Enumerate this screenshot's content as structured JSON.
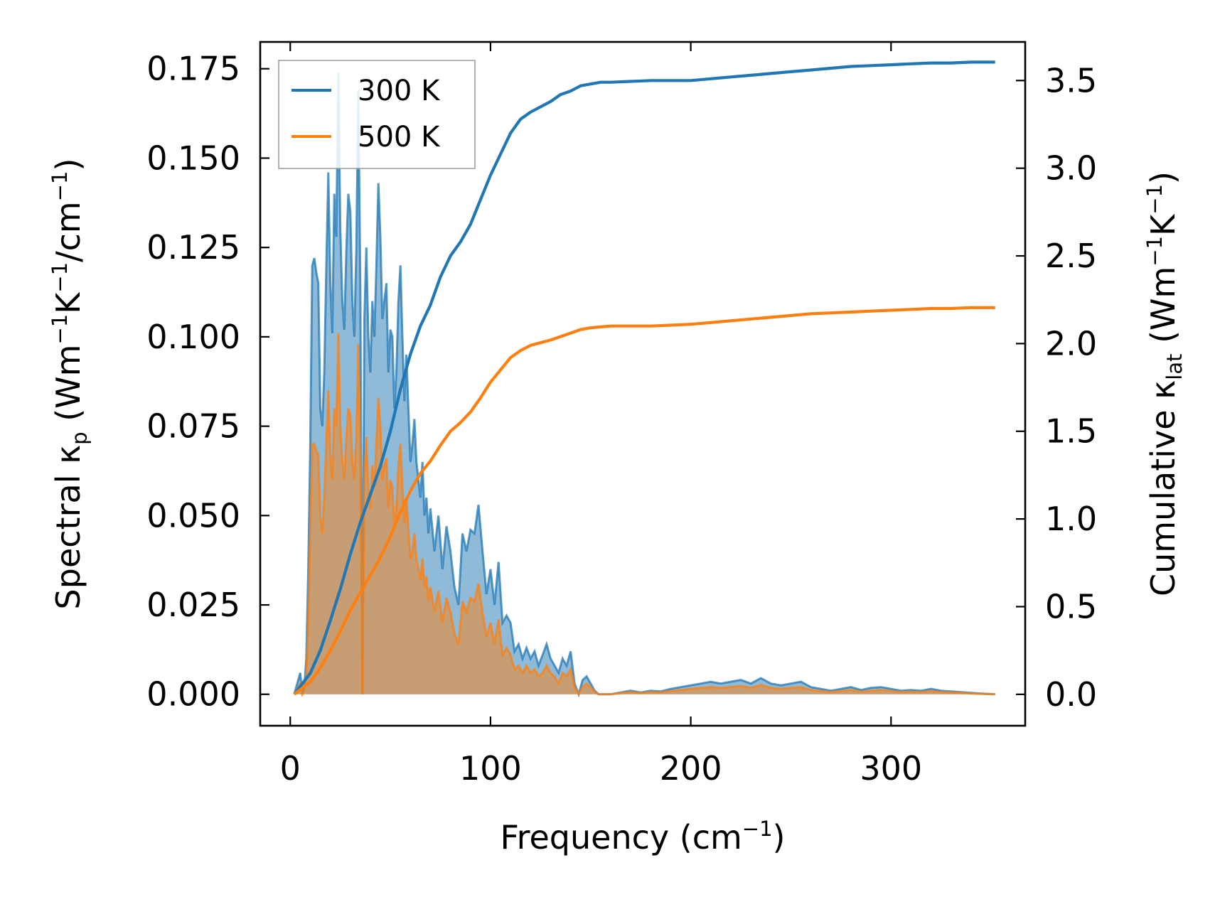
{
  "chart_data": {
    "type": "area",
    "xlabel": "Frequency (cm⁻¹)",
    "ylabel_left": "Spectral κp (Wm⁻¹K⁻¹/cm⁻¹)",
    "ylabel_right": "Cumulative κlat (Wm⁻¹K⁻¹)",
    "xlim": [
      -15,
      367
    ],
    "ylim_left": [
      -0.0088,
      0.1825
    ],
    "ylim_right": [
      -0.179,
      3.72
    ],
    "x_ticks": [
      0,
      100,
      200,
      300
    ],
    "x_tick_labels": [
      "0",
      "100",
      "200",
      "300"
    ],
    "y_left_ticks": [
      0,
      0.025,
      0.05,
      0.075,
      0.1,
      0.125,
      0.15,
      0.175
    ],
    "y_left_tick_labels": [
      "0.000",
      "0.025",
      "0.050",
      "0.075",
      "0.100",
      "0.125",
      "0.150",
      "0.175"
    ],
    "y_right_ticks": [
      0,
      0.5,
      1.0,
      1.5,
      2.0,
      2.5,
      3.0,
      3.5
    ],
    "y_right_tick_labels": [
      "0.0",
      "0.5",
      "1.0",
      "1.5",
      "2.0",
      "2.5",
      "3.0",
      "3.5"
    ],
    "legend_position": "top-left",
    "grid": false,
    "series": [
      {
        "name": "300 K",
        "color": "#1f77b4",
        "spectral": {
          "x": [
            2,
            4,
            5,
            6,
            7,
            8,
            9,
            10,
            11,
            12,
            13,
            14,
            15,
            16,
            17,
            18,
            19,
            20,
            21,
            22,
            23,
            24,
            25,
            26,
            27,
            28,
            29,
            30,
            31,
            32,
            33,
            34,
            35,
            36,
            37,
            38,
            39,
            40,
            41,
            42,
            43,
            44,
            45,
            46,
            47,
            48,
            49,
            50,
            51,
            52,
            53,
            54,
            55,
            56,
            57,
            58,
            59,
            60,
            61,
            62,
            63,
            64,
            65,
            66,
            67,
            68,
            69,
            70,
            72,
            74,
            76,
            78,
            80,
            82,
            84,
            86,
            88,
            90,
            92,
            94,
            96,
            98,
            100,
            102,
            104,
            106,
            108,
            110,
            112,
            114,
            116,
            118,
            120,
            122,
            124,
            126,
            128,
            130,
            132,
            134,
            136,
            138,
            140,
            142,
            144,
            146,
            148,
            150,
            152,
            154,
            156,
            158,
            160,
            165,
            170,
            175,
            180,
            185,
            190,
            195,
            200,
            205,
            210,
            215,
            220,
            225,
            230,
            235,
            240,
            245,
            250,
            255,
            260,
            265,
            270,
            275,
            280,
            285,
            290,
            295,
            300,
            305,
            310,
            315,
            320,
            325,
            330,
            335,
            340,
            345,
            352
          ],
          "y": [
            0.0,
            0.004,
            0.006,
            0.0,
            0.002,
            0.01,
            0.035,
            0.07,
            0.12,
            0.122,
            0.118,
            0.115,
            0.08,
            0.075,
            0.09,
            0.12,
            0.146,
            0.115,
            0.101,
            0.14,
            0.128,
            0.174,
            0.13,
            0.11,
            0.102,
            0.124,
            0.14,
            0.135,
            0.11,
            0.1,
            0.125,
            0.169,
            0.115,
            0.0,
            0.105,
            0.125,
            0.1,
            0.09,
            0.11,
            0.1,
            0.12,
            0.143,
            0.128,
            0.105,
            0.11,
            0.115,
            0.09,
            0.102,
            0.1,
            0.08,
            0.09,
            0.11,
            0.12,
            0.1,
            0.082,
            0.095,
            0.08,
            0.065,
            0.07,
            0.077,
            0.065,
            0.06,
            0.055,
            0.065,
            0.05,
            0.055,
            0.045,
            0.052,
            0.04,
            0.05,
            0.035,
            0.047,
            0.04,
            0.03,
            0.025,
            0.045,
            0.04,
            0.046,
            0.045,
            0.053,
            0.04,
            0.028,
            0.035,
            0.025,
            0.037,
            0.02,
            0.022,
            0.02,
            0.012,
            0.014,
            0.01,
            0.013,
            0.01,
            0.012,
            0.008,
            0.011,
            0.014,
            0.01,
            0.008,
            0.006,
            0.01,
            0.008,
            0.012,
            0.003,
            0.0,
            0.004,
            0.005,
            0.003,
            0.001,
            0.0,
            0.0,
            0.0,
            0.0,
            0.0005,
            0.001,
            0.0005,
            0.001,
            0.0008,
            0.0015,
            0.002,
            0.0025,
            0.003,
            0.0035,
            0.003,
            0.0035,
            0.004,
            0.003,
            0.0045,
            0.003,
            0.0025,
            0.003,
            0.0035,
            0.002,
            0.0015,
            0.001,
            0.0015,
            0.002,
            0.0012,
            0.0018,
            0.002,
            0.0015,
            0.001,
            0.0012,
            0.001,
            0.0015,
            0.001,
            0.0008,
            0.0006,
            0.0004,
            0.0002,
            0.0
          ]
        },
        "cumulative": {
          "x": [
            2,
            10,
            15,
            20,
            25,
            30,
            35,
            40,
            45,
            50,
            55,
            60,
            65,
            70,
            75,
            80,
            85,
            90,
            95,
            100,
            105,
            110,
            115,
            120,
            130,
            135,
            140,
            145,
            150,
            155,
            160,
            170,
            180,
            190,
            200,
            210,
            220,
            230,
            240,
            250,
            260,
            270,
            280,
            290,
            300,
            310,
            320,
            330,
            340,
            350,
            352
          ],
          "y": [
            0.0,
            0.12,
            0.25,
            0.42,
            0.6,
            0.8,
            0.98,
            1.14,
            1.3,
            1.5,
            1.74,
            1.94,
            2.1,
            2.22,
            2.38,
            2.5,
            2.58,
            2.68,
            2.82,
            2.96,
            3.08,
            3.2,
            3.28,
            3.32,
            3.38,
            3.42,
            3.44,
            3.47,
            3.48,
            3.49,
            3.49,
            3.495,
            3.5,
            3.5,
            3.5,
            3.51,
            3.52,
            3.53,
            3.54,
            3.55,
            3.56,
            3.57,
            3.58,
            3.585,
            3.59,
            3.595,
            3.6,
            3.6,
            3.605,
            3.605,
            3.605
          ]
        }
      },
      {
        "name": "500 K",
        "color": "#ff7f0e",
        "spectral": {
          "x": [
            2,
            4,
            5,
            6,
            7,
            8,
            9,
            10,
            11,
            12,
            13,
            14,
            15,
            16,
            17,
            18,
            19,
            20,
            21,
            22,
            23,
            24,
            25,
            26,
            27,
            28,
            29,
            30,
            31,
            32,
            33,
            34,
            35,
            36,
            37,
            38,
            39,
            40,
            41,
            42,
            43,
            44,
            45,
            46,
            47,
            48,
            49,
            50,
            51,
            52,
            53,
            54,
            55,
            56,
            57,
            58,
            59,
            60,
            61,
            62,
            63,
            64,
            65,
            66,
            67,
            68,
            69,
            70,
            72,
            74,
            76,
            78,
            80,
            82,
            84,
            86,
            88,
            90,
            92,
            94,
            96,
            98,
            100,
            102,
            104,
            106,
            108,
            110,
            112,
            114,
            116,
            118,
            120,
            122,
            124,
            126,
            128,
            130,
            132,
            134,
            136,
            138,
            140,
            142,
            144,
            146,
            148,
            150,
            152,
            154,
            156,
            158,
            160,
            165,
            170,
            175,
            180,
            185,
            190,
            195,
            200,
            205,
            210,
            215,
            220,
            225,
            230,
            235,
            240,
            245,
            250,
            255,
            260,
            265,
            270,
            275,
            280,
            285,
            290,
            295,
            300,
            305,
            310,
            315,
            320,
            325,
            330,
            335,
            340,
            345,
            352
          ],
          "y": [
            0.0,
            0.002,
            0.003,
            0.0,
            0.001,
            0.005,
            0.02,
            0.045,
            0.07,
            0.07,
            0.068,
            0.067,
            0.05,
            0.045,
            0.055,
            0.07,
            0.085,
            0.067,
            0.06,
            0.08,
            0.075,
            0.101,
            0.075,
            0.065,
            0.06,
            0.072,
            0.08,
            0.078,
            0.065,
            0.06,
            0.072,
            0.098,
            0.068,
            0.0,
            0.06,
            0.072,
            0.058,
            0.052,
            0.064,
            0.058,
            0.07,
            0.083,
            0.075,
            0.06,
            0.064,
            0.066,
            0.052,
            0.06,
            0.058,
            0.046,
            0.052,
            0.064,
            0.07,
            0.058,
            0.048,
            0.055,
            0.046,
            0.038,
            0.04,
            0.045,
            0.038,
            0.035,
            0.032,
            0.038,
            0.03,
            0.033,
            0.026,
            0.03,
            0.023,
            0.029,
            0.02,
            0.027,
            0.023,
            0.017,
            0.014,
            0.026,
            0.023,
            0.027,
            0.026,
            0.031,
            0.023,
            0.016,
            0.02,
            0.014,
            0.021,
            0.011,
            0.013,
            0.011,
            0.007,
            0.008,
            0.006,
            0.008,
            0.006,
            0.007,
            0.005,
            0.006,
            0.008,
            0.006,
            0.005,
            0.003,
            0.006,
            0.005,
            0.007,
            0.002,
            0.0,
            0.002,
            0.003,
            0.002,
            0.0006,
            0.0,
            0.0,
            0.0,
            0.0,
            0.0003,
            0.0006,
            0.0003,
            0.0006,
            0.0005,
            0.0009,
            0.0012,
            0.0015,
            0.0018,
            0.002,
            0.0018,
            0.002,
            0.0023,
            0.0018,
            0.0026,
            0.0018,
            0.0015,
            0.0018,
            0.002,
            0.0012,
            0.0009,
            0.0006,
            0.0009,
            0.0012,
            0.0007,
            0.001,
            0.0012,
            0.0009,
            0.0006,
            0.0007,
            0.0006,
            0.0009,
            0.0006,
            0.0005,
            0.0004,
            0.0002,
            0.0001,
            0.0
          ]
        },
        "cumulative": {
          "x": [
            2,
            10,
            15,
            20,
            25,
            30,
            35,
            40,
            45,
            50,
            55,
            60,
            65,
            70,
            75,
            80,
            85,
            90,
            95,
            100,
            105,
            110,
            115,
            120,
            130,
            135,
            140,
            145,
            150,
            155,
            160,
            170,
            180,
            190,
            200,
            210,
            220,
            230,
            240,
            250,
            260,
            270,
            280,
            290,
            300,
            310,
            320,
            330,
            340,
            350,
            352
          ],
          "y": [
            0.0,
            0.07,
            0.15,
            0.25,
            0.36,
            0.48,
            0.58,
            0.68,
            0.78,
            0.9,
            1.04,
            1.16,
            1.26,
            1.33,
            1.42,
            1.5,
            1.55,
            1.61,
            1.69,
            1.78,
            1.85,
            1.92,
            1.96,
            1.99,
            2.02,
            2.04,
            2.06,
            2.08,
            2.09,
            2.095,
            2.1,
            2.1,
            2.1,
            2.105,
            2.11,
            2.12,
            2.13,
            2.14,
            2.15,
            2.16,
            2.17,
            2.175,
            2.18,
            2.185,
            2.19,
            2.195,
            2.2,
            2.2,
            2.205,
            2.205,
            2.205
          ]
        }
      }
    ]
  }
}
